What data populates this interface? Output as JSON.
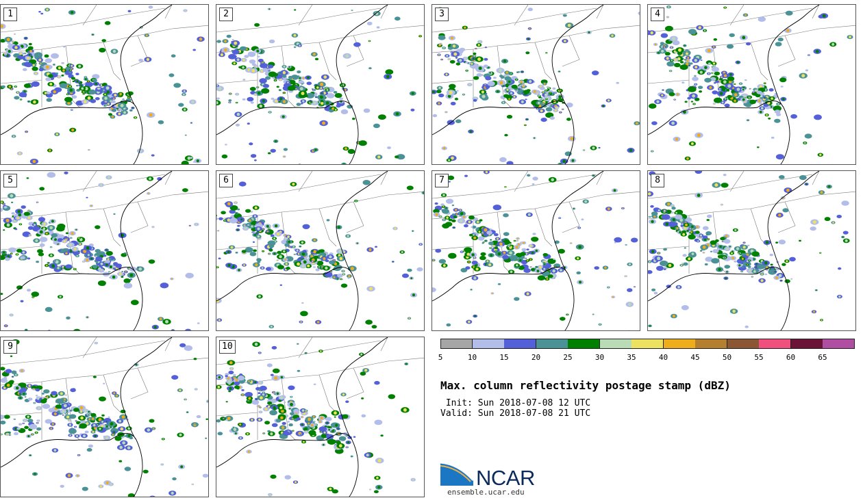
{
  "panels": [
    {
      "label": "1"
    },
    {
      "label": "2"
    },
    {
      "label": "3"
    },
    {
      "label": "4"
    },
    {
      "label": "5"
    },
    {
      "label": "6"
    },
    {
      "label": "7"
    },
    {
      "label": "8"
    },
    {
      "label": "9"
    },
    {
      "label": "10"
    }
  ],
  "colorbar": {
    "ticks": [
      "5",
      "10",
      "15",
      "20",
      "25",
      "30",
      "35",
      "40",
      "45",
      "50",
      "55",
      "60",
      "65"
    ],
    "colors": [
      "#a6a6a6",
      "#b3bdea",
      "#5360d8",
      "#4b9297",
      "#008000",
      "#b9dcb6",
      "#ece161",
      "#eeae1c",
      "#b57f30",
      "#8a5634",
      "#f0507e",
      "#6b1437",
      "#b04ea2"
    ]
  },
  "title": "Max. column reflectivity postage stamp (dBZ)",
  "init": " Init: Sun 2018-07-08 12 UTC",
  "valid": "Valid: Sun 2018-07-08 21 UTC",
  "logo": {
    "name": "NCAR",
    "url": "ensemble.ucar.edu"
  }
}
